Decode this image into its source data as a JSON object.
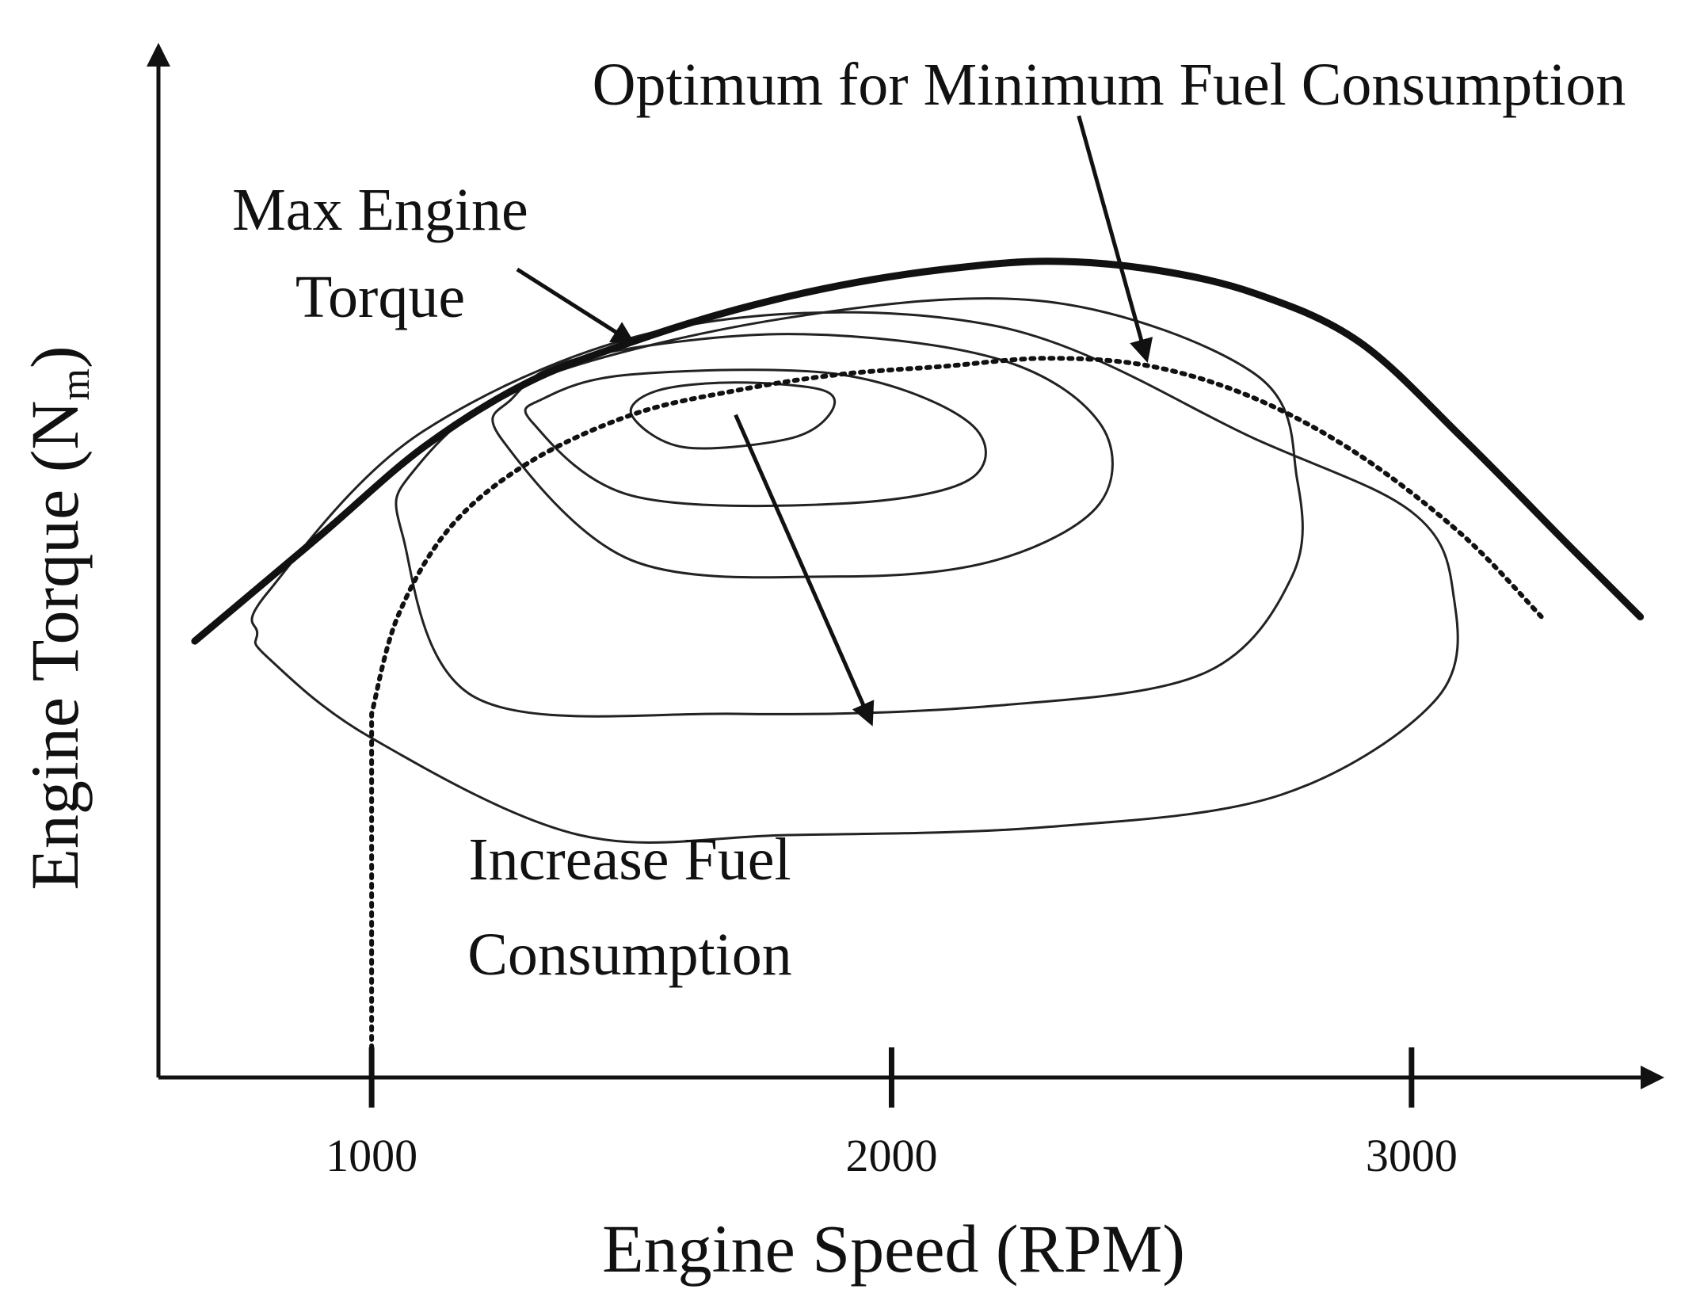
{
  "chart_data": {
    "type": "line",
    "title": "",
    "xlabel": "Engine Speed (RPM)",
    "ylabel": "Engine Torque (N",
    "ylabel_subscript": "m",
    "ylabel_close": ")",
    "xlim": [
      590,
      3500
    ],
    "ylim": [
      0,
      100
    ],
    "x_ticks": [
      1000,
      2000,
      3000
    ],
    "x_tick_labels": [
      "1000",
      "2000",
      "3000"
    ],
    "series": [
      {
        "name": "Max Engine Torque",
        "style": "solid-thick",
        "x": [
          660,
          900,
          1100,
          1300,
          1500,
          1700,
          1900,
          2100,
          2300,
          2500,
          2700,
          2900,
          3100,
          3300,
          3440
        ],
        "y": [
          54,
          67,
          78,
          86,
          91,
          95,
          98,
          100,
          101,
          100,
          97,
          91,
          79,
          66,
          57
        ]
      },
      {
        "name": "Optimum for Minimum Fuel Consumption",
        "style": "dotted",
        "x": [
          1000,
          1000,
          1050,
          1150,
          1300,
          1500,
          1700,
          1900,
          2100,
          2300,
          2500,
          2700,
          2900,
          3100,
          3250
        ],
        "y": [
          0,
          45,
          57,
          68,
          76,
          82,
          85,
          87,
          88,
          89,
          88,
          84,
          77,
          67,
          57
        ]
      }
    ],
    "contours": [
      {
        "name": "contour-1",
        "x": [
          800,
          1000,
          1400,
          1800,
          2300,
          2750,
          3050,
          3080,
          3000,
          2700,
          2200,
          1600,
          1100,
          800,
          780,
          780
        ],
        "y": [
          52,
          42,
          30,
          30,
          31,
          35,
          47,
          60,
          70,
          79,
          93,
          93,
          80,
          60,
          55,
          52
        ]
      },
      {
        "name": "contour-2",
        "x": [
          1060,
          1200,
          1700,
          2200,
          2600,
          2770,
          2780,
          2700,
          2300,
          1800,
          1300,
          1080,
          1060
        ],
        "y": [
          67,
          47,
          45,
          46,
          50,
          62,
          74,
          87,
          96,
          94,
          86,
          75,
          67
        ]
      },
      {
        "name": "contour-3",
        "x": [
          1250,
          1500,
          1900,
          2200,
          2400,
          2400,
          2200,
          1800,
          1400,
          1270,
          1250
        ],
        "y": [
          79,
          64,
          62,
          64,
          71,
          81,
          89,
          92,
          89,
          84,
          79
        ]
      },
      {
        "name": "contour-4",
        "x": [
          1310,
          1500,
          1900,
          2150,
          2150,
          1900,
          1500,
          1330,
          1310
        ],
        "y": [
          81,
          72,
          71,
          74,
          81,
          87,
          87,
          84,
          81
        ]
      },
      {
        "name": "contour-5",
        "x": [
          1500,
          1600,
          1800,
          1880,
          1870,
          1700,
          1550,
          1500
        ],
        "y": [
          82,
          78,
          79,
          82,
          85,
          86,
          85,
          82
        ]
      }
    ],
    "annotations": [
      {
        "id": "max-torque",
        "lines": [
          "Max Engine",
          "Torque"
        ],
        "arrow_from": [
          1280,
          100
        ],
        "arrow_to": [
          1500,
          91
        ]
      },
      {
        "id": "optimum",
        "lines": [
          "Optimum for Minimum Fuel Consumption"
        ],
        "arrow_from": [
          2360,
          119
        ],
        "arrow_to": [
          2490,
          89
        ]
      },
      {
        "id": "increase",
        "lines": [
          "Increase Fuel",
          "Consumption"
        ],
        "arrow_from": [
          1700,
          82
        ],
        "arrow_to": [
          1960,
          44
        ]
      }
    ],
    "grid": false,
    "legend": "none"
  }
}
